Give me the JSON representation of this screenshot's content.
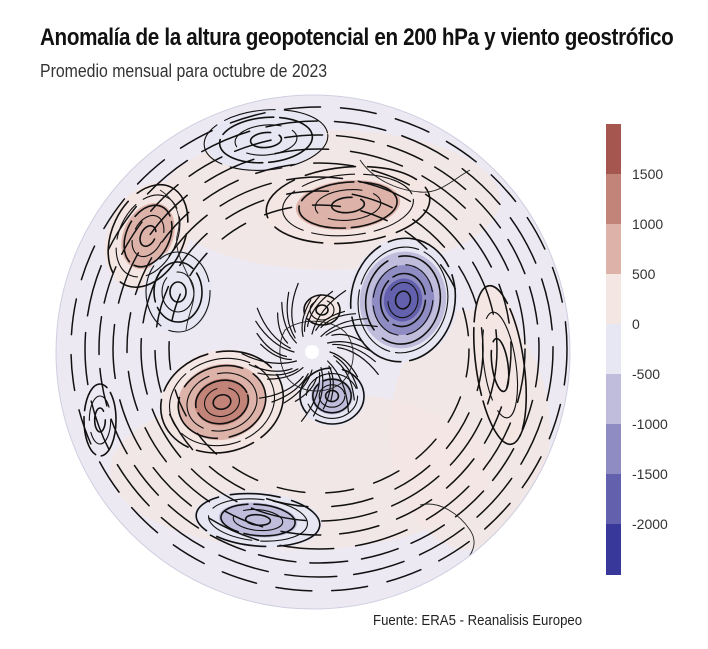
{
  "title": "Anomalía de la altura geopotencial en 200 hPa y viento geostrófico",
  "subtitle": "Promedio mensual para octubre de 2023",
  "source": "Fuente: ERA5 - Reanalisis Europeo",
  "colorbar": {
    "levels": [
      {
        "label": "1500",
        "value": 1500
      },
      {
        "label": "1000",
        "value": 1000
      },
      {
        "label": "500",
        "value": 500
      },
      {
        "label": "0",
        "value": 0
      },
      {
        "label": "-500",
        "value": -500
      },
      {
        "label": "-1000",
        "value": -1000
      },
      {
        "label": "-1500",
        "value": -1500
      },
      {
        "label": "-2000",
        "value": -2000
      }
    ],
    "bins": [
      {
        "range": [
          1500,
          2000
        ],
        "color": "#a5564f"
      },
      {
        "range": [
          1000,
          1500
        ],
        "color": "#c28378"
      },
      {
        "range": [
          500,
          1000
        ],
        "color": "#ddb2a9"
      },
      {
        "range": [
          0,
          500
        ],
        "color": "#f4e6e3"
      },
      {
        "range": [
          -500,
          0
        ],
        "color": "#e7e6f3"
      },
      {
        "range": [
          -1000,
          -500
        ],
        "color": "#bfbcdc"
      },
      {
        "range": [
          -1500,
          -1000
        ],
        "color": "#8f8cc4"
      },
      {
        "range": [
          -2000,
          -1500
        ],
        "color": "#6360ad"
      },
      {
        "range": [
          -2500,
          -2000
        ],
        "color": "#38389b"
      }
    ]
  },
  "map": {
    "projection": "polar-stereographic",
    "hemisphere": "south",
    "anomalies": [
      {
        "name": "high-pacific-southwest",
        "peak": 1500
      },
      {
        "name": "low-south-atlantic",
        "peak": -2000
      },
      {
        "name": "high-north",
        "peak": 1000
      },
      {
        "name": "low-pole-east",
        "peak": -1000
      },
      {
        "name": "high-west",
        "peak": 1000
      },
      {
        "name": "low-south",
        "peak": -1000
      },
      {
        "name": "low-west",
        "peak": -500
      },
      {
        "name": "high-pole-small",
        "peak": 500
      },
      {
        "name": "low-north",
        "peak": -500
      },
      {
        "name": "high-east",
        "peak": 500
      }
    ]
  }
}
